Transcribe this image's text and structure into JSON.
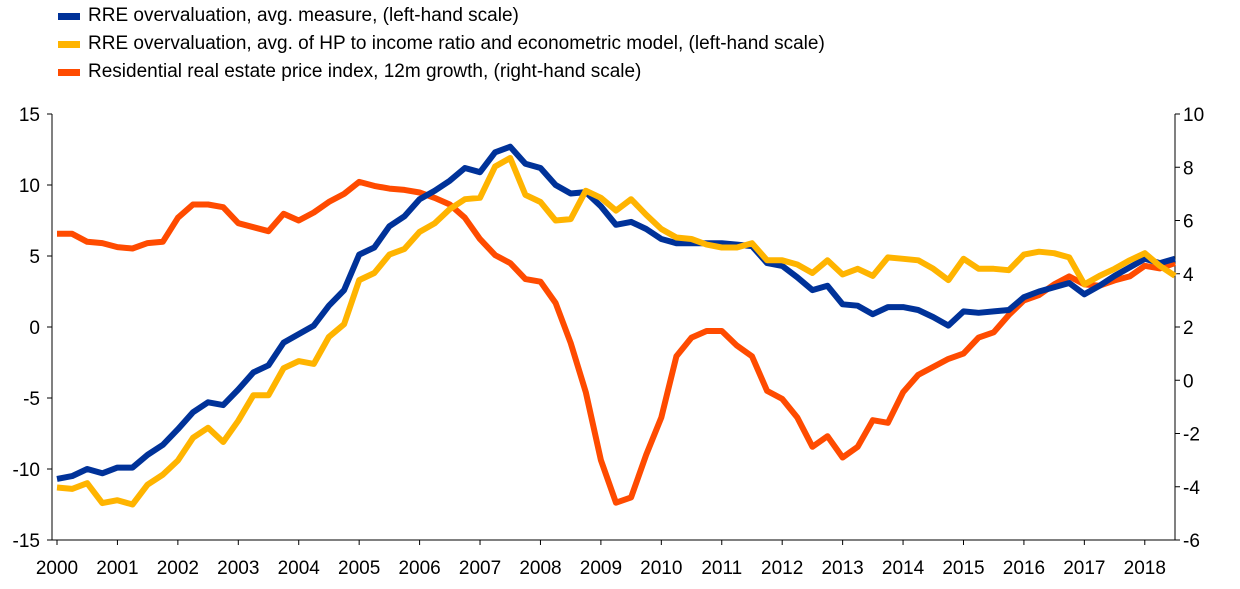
{
  "chart_data": {
    "type": "line",
    "title": "",
    "xlabel": "",
    "ylabel_left": "",
    "ylabel_right": "",
    "x_start": 2000,
    "x_step": 0.25,
    "xlim": [
      2000,
      2018.5
    ],
    "x_ticks": [
      "2000",
      "2001",
      "2002",
      "2003",
      "2004",
      "2005",
      "2006",
      "2007",
      "2008",
      "2009",
      "2010",
      "2011",
      "2012",
      "2013",
      "2014",
      "2015",
      "2016",
      "2017",
      "2018"
    ],
    "ylim_left": [
      -15,
      15
    ],
    "y_ticks_left": [
      "15",
      "10",
      "5",
      "0",
      "-5",
      "-10",
      "-15"
    ],
    "ylim_right": [
      -6,
      10
    ],
    "y_ticks_right": [
      "10",
      "8",
      "6",
      "4",
      "2",
      "0",
      "-2",
      "-4",
      "-6"
    ],
    "grid": false,
    "legend_position": "top-left",
    "series": [
      {
        "name": "RRE overvaluation, avg. measure, (left-hand scale)",
        "axis": "left",
        "color": "#003299",
        "values": [
          -10.7,
          -10.5,
          -10,
          -10.3,
          -9.9,
          -9.9,
          -9,
          -8.3,
          -7.2,
          -6,
          -5.3,
          -5.5,
          -4.4,
          -3.2,
          -2.7,
          -1.1,
          -0.5,
          0.1,
          1.5,
          2.6,
          5.1,
          5.6,
          7.1,
          7.8,
          9,
          9.6,
          10.3,
          11.2,
          10.9,
          12.3,
          12.7,
          11.5,
          11.2,
          10,
          9.4,
          9.5,
          8.5,
          7.2,
          7.4,
          6.9,
          6.2,
          5.9,
          5.9,
          5.9,
          5.9,
          5.8,
          5.7,
          4.5,
          4.3,
          3.5,
          2.6,
          2.9,
          1.6,
          1.5,
          0.9,
          1.4,
          1.4,
          1.2,
          0.7,
          0.1,
          1.1,
          1.0,
          1.1,
          1.2,
          2.1,
          2.5,
          2.8,
          3.1,
          2.3,
          2.9,
          3.6,
          4.2,
          4.8,
          4.5,
          4.8
        ]
      },
      {
        "name": "RRE overvaluation, avg. of HP to income ratio and econometric model, (left-hand scale)",
        "axis": "left",
        "color": "#FFB400",
        "values": [
          -11.3,
          -11.4,
          -11,
          -12.4,
          -12.2,
          -12.5,
          -11.1,
          -10.4,
          -9.4,
          -7.8,
          -7.1,
          -8.1,
          -6.6,
          -4.8,
          -4.8,
          -2.9,
          -2.4,
          -2.6,
          -0.7,
          0.2,
          3.3,
          3.8,
          5.1,
          5.5,
          6.7,
          7.3,
          8.3,
          9.0,
          9.1,
          11.3,
          11.9,
          9.3,
          8.8,
          7.5,
          7.6,
          9.6,
          9.1,
          8.2,
          9.0,
          7.9,
          6.9,
          6.3,
          6.2,
          5.8,
          5.6,
          5.6,
          5.9,
          4.7,
          4.7,
          4.4,
          3.8,
          4.7,
          3.7,
          4.1,
          3.6,
          4.9,
          4.8,
          4.7,
          4.1,
          3.3,
          4.8,
          4.1,
          4.1,
          4.0,
          5.1,
          5.3,
          5.2,
          4.9,
          3.0,
          3.6,
          4.1,
          4.7,
          5.2,
          4.3,
          3.6
        ]
      },
      {
        "name": "Residential real estate price index, 12m growth, (right-hand scale)",
        "axis": "right",
        "color": "#FF4B00",
        "values": [
          5.5,
          5.5,
          5.2,
          5.15,
          5.0,
          4.95,
          5.15,
          5.2,
          6.1,
          6.6,
          6.6,
          6.5,
          5.9,
          5.75,
          5.6,
          6.25,
          6.0,
          6.3,
          6.7,
          7.0,
          7.45,
          7.3,
          7.2,
          7.15,
          7.05,
          6.85,
          6.6,
          6.1,
          5.3,
          4.7,
          4.4,
          3.8,
          3.7,
          2.9,
          1.4,
          -0.45,
          -3.0,
          -4.6,
          -4.4,
          -2.8,
          -1.4,
          0.9,
          1.6,
          1.85,
          1.85,
          1.3,
          0.9,
          -0.4,
          -0.7,
          -1.4,
          -2.5,
          -2.1,
          -2.9,
          -2.5,
          -1.5,
          -1.6,
          -0.45,
          0.2,
          0.5,
          0.8,
          1.0,
          1.6,
          1.8,
          2.45,
          3.0,
          3.2,
          3.6,
          3.9,
          3.6,
          3.55,
          3.75,
          3.9,
          4.3,
          4.2,
          4.4
        ]
      }
    ]
  }
}
